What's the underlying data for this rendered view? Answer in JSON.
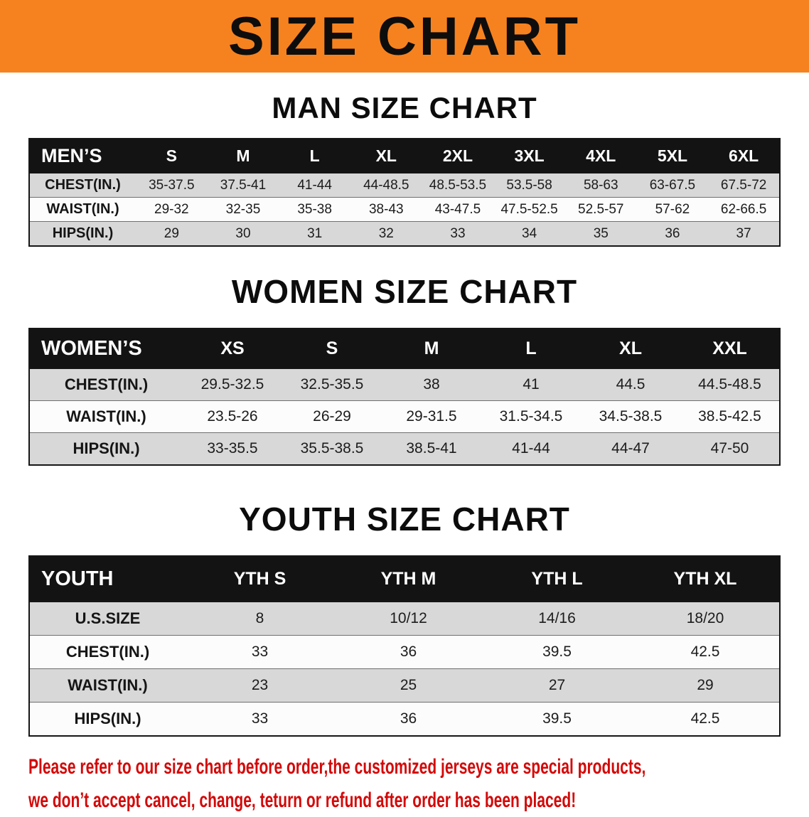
{
  "banner": {
    "title": "SIZE CHART",
    "bg_color": "#f6821f"
  },
  "sections": [
    {
      "id": "men",
      "heading": "MAN SIZE CHART",
      "table": {
        "header": [
          "MEN’S",
          "S",
          "M",
          "L",
          "XL",
          "2XL",
          "3XL",
          "4XL",
          "5XL",
          "6XL"
        ],
        "rows": [
          {
            "label": "CHEST(IN.)",
            "values": [
              "35-37.5",
              "37.5-41",
              "41-44",
              "44-48.5",
              "48.5-53.5",
              "53.5-58",
              "58-63",
              "63-67.5",
              "67.5-72"
            ]
          },
          {
            "label": "WAIST(IN.)",
            "values": [
              "29-32",
              "32-35",
              "35-38",
              "38-43",
              "43-47.5",
              "47.5-52.5",
              "52.5-57",
              "57-62",
              "62-66.5"
            ]
          },
          {
            "label": "HIPS(IN.)",
            "values": [
              "29",
              "30",
              "31",
              "32",
              "33",
              "34",
              "35",
              "36",
              "37"
            ]
          }
        ]
      }
    },
    {
      "id": "women",
      "heading": "WOMEN SIZE CHART",
      "table": {
        "header": [
          "WOMEN’S",
          "XS",
          "S",
          "M",
          "L",
          "XL",
          "XXL"
        ],
        "rows": [
          {
            "label": "CHEST(IN.)",
            "values": [
              "29.5-32.5",
              "32.5-35.5",
              "38",
              "41",
              "44.5",
              "44.5-48.5"
            ]
          },
          {
            "label": "WAIST(IN.)",
            "values": [
              "23.5-26",
              "26-29",
              "29-31.5",
              "31.5-34.5",
              "34.5-38.5",
              "38.5-42.5"
            ]
          },
          {
            "label": "HIPS(IN.)",
            "values": [
              "33-35.5",
              "35.5-38.5",
              "38.5-41",
              "41-44",
              "44-47",
              "47-50"
            ]
          }
        ]
      }
    },
    {
      "id": "youth",
      "heading": "YOUTH SIZE CHART",
      "table": {
        "header": [
          "YOUTH",
          "YTH S",
          "YTH M",
          "YTH L",
          "YTH XL"
        ],
        "rows": [
          {
            "label": "U.S.SIZE",
            "values": [
              "8",
              "10/12",
              "14/16",
              "18/20"
            ]
          },
          {
            "label": "CHEST(IN.)",
            "values": [
              "33",
              "36",
              "39.5",
              "42.5"
            ]
          },
          {
            "label": "WAIST(IN.)",
            "values": [
              "23",
              "25",
              "27",
              "29"
            ]
          },
          {
            "label": "HIPS(IN.)",
            "values": [
              "33",
              "36",
              "39.5",
              "42.5"
            ]
          }
        ]
      }
    }
  ],
  "footer": {
    "text_color": "#d40808",
    "line1": "Please refer to our size chart before order,the customized jerseys are special products,",
    "line2": "we don’t accept cancel, change, teturn or refund after order has been placed!"
  }
}
